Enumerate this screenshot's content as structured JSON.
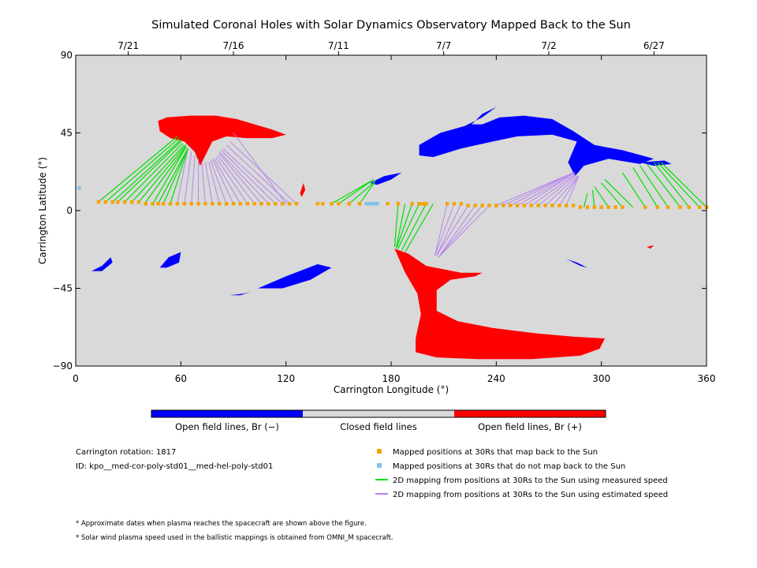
{
  "chart_data": {
    "type": "scatter",
    "title": "Simulated Coronal Holes with Solar Dynamics Observatory Mapped Back to the Sun",
    "xlabel": "Carrington Longitude (°)",
    "ylabel": "Carrington Latitude (°)",
    "xlim": [
      0,
      360
    ],
    "ylim": [
      -90,
      90
    ],
    "xticks": [
      0,
      60,
      120,
      180,
      240,
      300,
      360
    ],
    "yticks": [
      90,
      45,
      0,
      -45,
      -90
    ],
    "ytick_labels": [
      "90",
      "45",
      "0",
      "−45",
      "−90"
    ],
    "top_axis_dates": [
      {
        "label": "7/21",
        "x": 30
      },
      {
        "label": "7/16",
        "x": 90
      },
      {
        "label": "7/11",
        "x": 150
      },
      {
        "label": "7/7",
        "x": 210
      },
      {
        "label": "7/2",
        "x": 270
      },
      {
        "label": "6/27",
        "x": 330
      }
    ],
    "colors": {
      "background": "#d9d9d9",
      "open_negative": "#0000ff",
      "open_positive": "#ff0000",
      "closed": "#d9d9d9",
      "mapped": "#f5a300",
      "unmapped": "#7ec0ee",
      "measured_line": "#00e000",
      "estimated_line": "#b884f0"
    },
    "colorbar_labels": [
      "Open field lines, Br (−)",
      "Closed field lines",
      "Open field lines, Br (+)"
    ],
    "coronal_holes": [
      {
        "polarity": "positive",
        "name": "north-positive-hole",
        "points": [
          [
            47,
            52
          ],
          [
            52,
            54
          ],
          [
            65,
            55
          ],
          [
            80,
            55
          ],
          [
            92,
            53
          ],
          [
            102,
            50
          ],
          [
            112,
            47
          ],
          [
            120,
            44
          ],
          [
            112,
            42
          ],
          [
            98,
            42
          ],
          [
            86,
            43
          ],
          [
            78,
            40
          ],
          [
            74,
            32
          ],
          [
            71,
            26
          ],
          [
            68,
            34
          ],
          [
            62,
            40
          ],
          [
            54,
            42
          ],
          [
            48,
            46
          ]
        ]
      },
      {
        "polarity": "positive",
        "name": "south-positive-hole",
        "points": [
          [
            182,
            -22
          ],
          [
            190,
            -25
          ],
          [
            200,
            -32
          ],
          [
            210,
            -34
          ],
          [
            220,
            -36
          ],
          [
            232,
            -36
          ],
          [
            228,
            -38
          ],
          [
            214,
            -40
          ],
          [
            206,
            -46
          ],
          [
            206,
            -58
          ],
          [
            218,
            -64
          ],
          [
            238,
            -68
          ],
          [
            262,
            -71
          ],
          [
            284,
            -73
          ],
          [
            302,
            -74
          ],
          [
            299,
            -80
          ],
          [
            288,
            -84
          ],
          [
            260,
            -86
          ],
          [
            230,
            -86
          ],
          [
            206,
            -85
          ],
          [
            194,
            -82
          ],
          [
            194,
            -74
          ],
          [
            197,
            -60
          ],
          [
            195,
            -48
          ],
          [
            188,
            -36
          ]
        ]
      },
      {
        "polarity": "negative",
        "name": "north-negative-hole",
        "points": [
          [
            196,
            38
          ],
          [
            208,
            45
          ],
          [
            222,
            49
          ],
          [
            232,
            54
          ],
          [
            240,
            60
          ],
          [
            232,
            56
          ],
          [
            226,
            50
          ],
          [
            232,
            50
          ],
          [
            242,
            54
          ],
          [
            256,
            55
          ],
          [
            272,
            53
          ],
          [
            284,
            46
          ],
          [
            296,
            38
          ],
          [
            312,
            35
          ],
          [
            330,
            30
          ],
          [
            322,
            27
          ],
          [
            304,
            30
          ],
          [
            290,
            26
          ],
          [
            285,
            20
          ],
          [
            281,
            28
          ],
          [
            286,
            40
          ],
          [
            272,
            44
          ],
          [
            252,
            43
          ],
          [
            238,
            40
          ],
          [
            220,
            36
          ],
          [
            204,
            31
          ],
          [
            196,
            32
          ]
        ]
      },
      {
        "polarity": "negative",
        "name": "south-band-hole",
        "points": [
          [
            104,
            -45
          ],
          [
            120,
            -38
          ],
          [
            138,
            -31
          ],
          [
            146,
            -33
          ],
          [
            134,
            -40
          ],
          [
            118,
            -45
          ]
        ]
      },
      {
        "polarity": "negative",
        "name": "west-small-hole",
        "points": [
          [
            9,
            -35
          ],
          [
            15,
            -32
          ],
          [
            20,
            -27
          ],
          [
            21,
            -30
          ],
          [
            15,
            -35
          ]
        ]
      },
      {
        "polarity": "negative",
        "name": "mid-small-hole",
        "points": [
          [
            48,
            -33
          ],
          [
            53,
            -27
          ],
          [
            60,
            -24
          ],
          [
            59,
            -30
          ],
          [
            52,
            -33
          ]
        ]
      },
      {
        "polarity": "negative",
        "name": "east-small-hole",
        "points": [
          [
            280,
            -28
          ],
          [
            286,
            -30
          ],
          [
            292,
            -33
          ],
          [
            288,
            -32
          ]
        ]
      },
      {
        "polarity": "negative",
        "name": "tiny-hole-a",
        "points": [
          [
            168,
            16
          ],
          [
            176,
            20
          ],
          [
            186,
            22
          ],
          [
            180,
            18
          ],
          [
            172,
            15
          ]
        ]
      },
      {
        "polarity": "negative",
        "name": "tiny-hole-b",
        "points": [
          [
            88,
            -49
          ],
          [
            96,
            -48
          ],
          [
            100,
            -47
          ],
          [
            94,
            -49
          ]
        ]
      },
      {
        "polarity": "negative",
        "name": "tiny-hole-c",
        "points": [
          [
            322,
            28
          ],
          [
            336,
            29
          ],
          [
            340,
            27
          ],
          [
            330,
            26
          ]
        ]
      },
      {
        "polarity": "positive",
        "name": "tiny-hole-d",
        "points": [
          [
            128,
            10
          ],
          [
            130,
            16
          ],
          [
            131,
            12
          ],
          [
            129,
            8
          ]
        ]
      },
      {
        "polarity": "positive",
        "name": "tiny-hole-e",
        "points": [
          [
            326,
            -21
          ],
          [
            330,
            -20
          ],
          [
            328,
            -22
          ]
        ]
      }
    ],
    "mapped_positions": {
      "name": "Mapped positions at 30Rs that map back to the Sun",
      "x": [
        13,
        17,
        21,
        24,
        28,
        32,
        36,
        40,
        44,
        47,
        50,
        54,
        58,
        62,
        66,
        70,
        74,
        78,
        82,
        86,
        90,
        94,
        98,
        102,
        106,
        110,
        114,
        118,
        122,
        126,
        138,
        141,
        146,
        150,
        156,
        162,
        178,
        184,
        192,
        196,
        198,
        200,
        212,
        216,
        220,
        224,
        228,
        232,
        236,
        240,
        244,
        248,
        252,
        256,
        260,
        264,
        268,
        272,
        276,
        280,
        284,
        288,
        292,
        296,
        300,
        304,
        308,
        312,
        325,
        332,
        338,
        345,
        350,
        356,
        360
      ],
      "y": [
        5,
        5,
        5,
        5,
        5,
        5,
        5,
        4,
        4,
        4,
        4,
        4,
        4,
        4,
        4,
        4,
        4,
        4,
        4,
        4,
        4,
        4,
        4,
        4,
        4,
        4,
        4,
        4,
        4,
        4,
        4,
        4,
        4,
        4,
        4,
        4,
        4,
        4,
        4,
        4,
        4,
        4,
        4,
        4,
        4,
        3,
        3,
        3,
        3,
        3,
        3,
        3,
        3,
        3,
        3,
        3,
        3,
        3,
        3,
        3,
        3,
        2,
        2,
        2,
        2,
        2,
        2,
        2,
        2,
        2,
        2,
        2,
        2,
        2,
        2
      ]
    },
    "unmapped_positions": {
      "name": "Mapped positions at 30Rs that do not map back to the Sun",
      "x": [
        166,
        168,
        170,
        172,
        2
      ],
      "y": [
        4,
        4,
        4,
        4,
        13
      ]
    },
    "measured_speed_lines": {
      "name": "2D mapping from positions at 30Rs to the Sun using measured speed",
      "segments": [
        [
          13,
          5,
          58,
          43
        ],
        [
          17,
          5,
          59,
          42
        ],
        [
          21,
          5,
          60,
          41
        ],
        [
          24,
          5,
          60,
          40
        ],
        [
          28,
          5,
          61,
          39
        ],
        [
          32,
          5,
          62,
          38
        ],
        [
          36,
          5,
          63,
          38
        ],
        [
          40,
          5,
          63,
          37
        ],
        [
          44,
          4,
          63,
          37
        ],
        [
          47,
          4,
          64,
          36
        ],
        [
          50,
          4,
          64,
          36
        ],
        [
          54,
          4,
          64,
          36
        ],
        [
          146,
          4,
          170,
          18
        ],
        [
          150,
          4,
          170,
          18
        ],
        [
          156,
          4,
          171,
          17
        ],
        [
          162,
          4,
          171,
          17
        ],
        [
          184,
          4,
          182,
          -21
        ],
        [
          188,
          4,
          183,
          -21
        ],
        [
          192,
          4,
          183,
          -22
        ],
        [
          196,
          4,
          184,
          -22
        ],
        [
          200,
          4,
          186,
          -23
        ],
        [
          204,
          4,
          188,
          -24
        ],
        [
          290,
          2,
          292,
          10
        ],
        [
          296,
          2,
          295,
          12
        ],
        [
          304,
          2,
          296,
          14
        ],
        [
          312,
          2,
          300,
          16
        ],
        [
          318,
          2,
          302,
          18
        ],
        [
          325,
          2,
          312,
          22
        ],
        [
          332,
          2,
          318,
          25
        ],
        [
          338,
          2,
          322,
          26
        ],
        [
          345,
          2,
          326,
          27
        ],
        [
          350,
          2,
          330,
          28
        ],
        [
          356,
          2,
          332,
          28
        ],
        [
          360,
          2,
          334,
          28
        ]
      ]
    },
    "estimated_speed_lines": {
      "name": "2D mapping from positions at 30Rs to the Sun using estimated speed",
      "segments": [
        [
          58,
          4,
          64,
          36
        ],
        [
          62,
          4,
          66,
          34
        ],
        [
          66,
          4,
          68,
          32
        ],
        [
          70,
          4,
          70,
          30
        ],
        [
          74,
          4,
          72,
          28
        ],
        [
          78,
          4,
          74,
          28
        ],
        [
          82,
          4,
          76,
          28
        ],
        [
          86,
          4,
          77,
          29
        ],
        [
          90,
          4,
          78,
          30
        ],
        [
          94,
          4,
          79,
          30
        ],
        [
          98,
          4,
          80,
          31
        ],
        [
          102,
          4,
          81,
          32
        ],
        [
          106,
          4,
          82,
          33
        ],
        [
          110,
          4,
          82,
          34
        ],
        [
          114,
          4,
          83,
          35
        ],
        [
          118,
          4,
          84,
          36
        ],
        [
          122,
          4,
          86,
          38
        ],
        [
          126,
          4,
          88,
          40
        ],
        [
          120,
          4,
          90,
          45
        ],
        [
          212,
          4,
          205,
          -26
        ],
        [
          216,
          4,
          205,
          -26
        ],
        [
          220,
          4,
          206,
          -26
        ],
        [
          224,
          3,
          206,
          -26
        ],
        [
          228,
          3,
          207,
          -27
        ],
        [
          232,
          3,
          207,
          -27
        ],
        [
          236,
          3,
          207,
          -27
        ],
        [
          240,
          3,
          284,
          22
        ],
        [
          244,
          3,
          284,
          22
        ],
        [
          248,
          3,
          284,
          22
        ],
        [
          252,
          3,
          285,
          22
        ],
        [
          256,
          3,
          285,
          22
        ],
        [
          260,
          3,
          285,
          21
        ],
        [
          264,
          3,
          286,
          21
        ],
        [
          268,
          3,
          286,
          20
        ],
        [
          272,
          3,
          287,
          20
        ],
        [
          276,
          3,
          287,
          20
        ],
        [
          280,
          3,
          287,
          20
        ]
      ]
    },
    "annotations": {
      "carrington_rotation": "Carrington rotation: 1817",
      "model_id": "ID: kpo__med-cor-poly-std01__med-hel-poly-std01",
      "footnote_dates": "* Approximate dates when plasma reaches the spacecraft are shown above the figure.",
      "footnote_speed": "* Solar wind plasma speed used in the ballistic mappings is obtained from OMNI_M spacecraft."
    },
    "legend_entries": [
      "Mapped positions at 30Rs that map back to the Sun",
      "Mapped positions at 30Rs that do not map back to the Sun",
      "2D mapping from positions at 30Rs to the Sun using measured speed",
      "2D mapping from positions at 30Rs to the Sun using estimated speed"
    ],
    "grid": false
  }
}
